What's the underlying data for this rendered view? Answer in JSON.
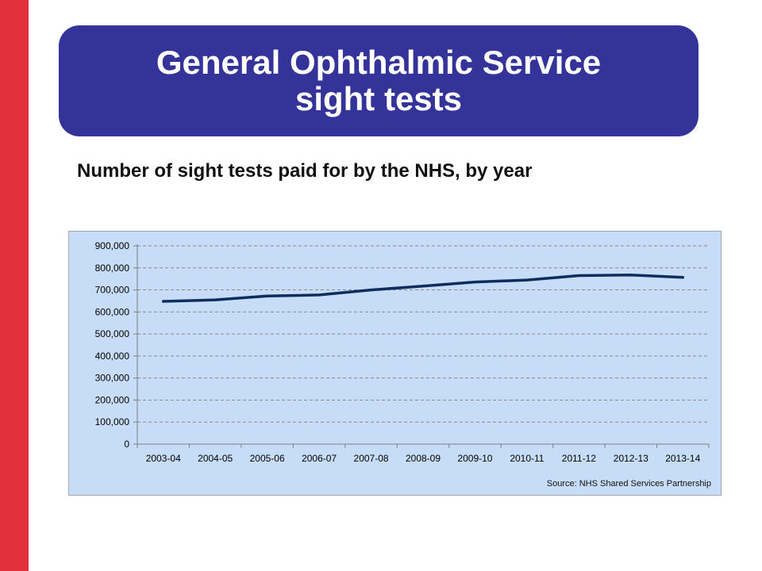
{
  "slide": {
    "title_line1": "General Ophthalmic Service",
    "title_line2": "sight tests",
    "subtitle": "Number of sight tests paid for by the NHS, by year",
    "source": "Source: NHS Shared Services Partnership"
  },
  "colors": {
    "accent_bar": "#e0313c",
    "title_box": "#333399",
    "chart_background": "#c6dcf7",
    "line": "#0d2d5e"
  },
  "chart_data": {
    "type": "line",
    "categories": [
      "2003-04",
      "2004-05",
      "2005-06",
      "2006-07",
      "2007-08",
      "2008-09",
      "2009-10",
      "2010-11",
      "2011-12",
      "2012-13",
      "2013-14"
    ],
    "series": [
      {
        "values": [
          648000,
          655000,
          672000,
          677000,
          700000,
          717000,
          736000,
          745000,
          765000,
          768000,
          757000
        ]
      }
    ],
    "y_ticks": [
      "0",
      "100,000",
      "200,000",
      "300,000",
      "400,000",
      "500,000",
      "600,000",
      "700,000",
      "800,000",
      "900,000"
    ],
    "ylim": [
      0,
      900000
    ],
    "grid": true,
    "legend": "none",
    "title": "",
    "xlabel": "",
    "ylabel": ""
  }
}
